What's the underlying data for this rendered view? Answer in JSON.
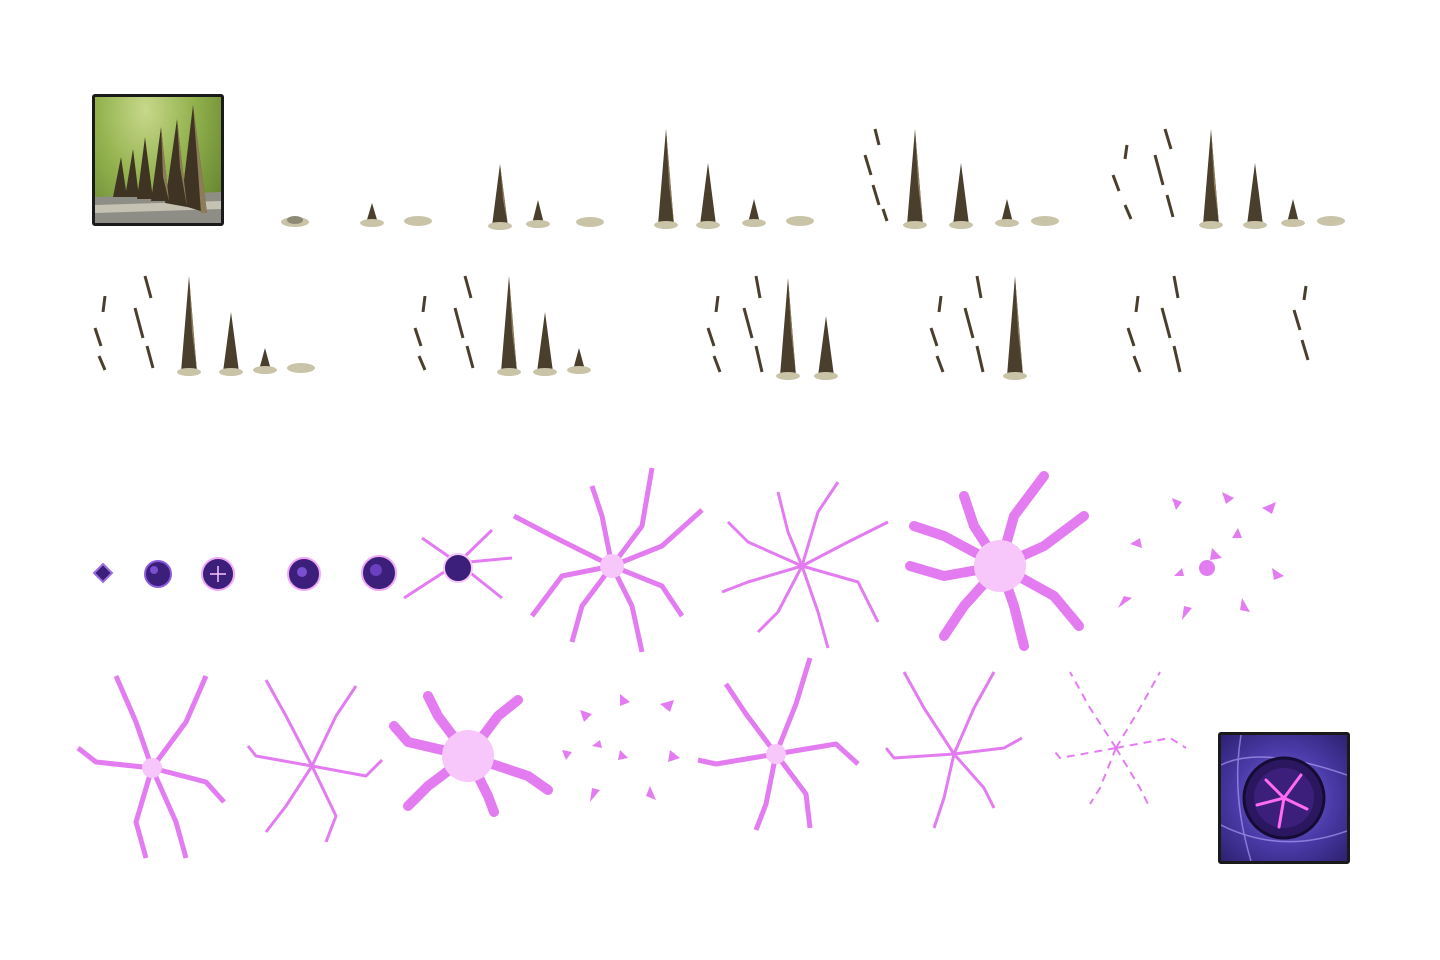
{
  "sheet": {
    "background": "#ffffff",
    "rows": [
      {
        "name": "earth-spike-row-1",
        "frames": 5
      },
      {
        "name": "earth-spike-row-2",
        "frames": 6
      },
      {
        "name": "shadow-burst-row-1",
        "frames": 10
      },
      {
        "name": "shadow-burst-row-2",
        "frames": 7
      }
    ]
  },
  "icons": {
    "spikes": "earth-spikes-skill-icon",
    "orb": "shadow-orb-skill-icon"
  },
  "colors": {
    "spike_dark": "#4a3f2c",
    "spike_light": "#8d7c58",
    "rock": "#c9c4a8",
    "magic": "#e27cf0",
    "magic_light": "#f7c6fb",
    "orb_core": "#3b1f7a"
  }
}
